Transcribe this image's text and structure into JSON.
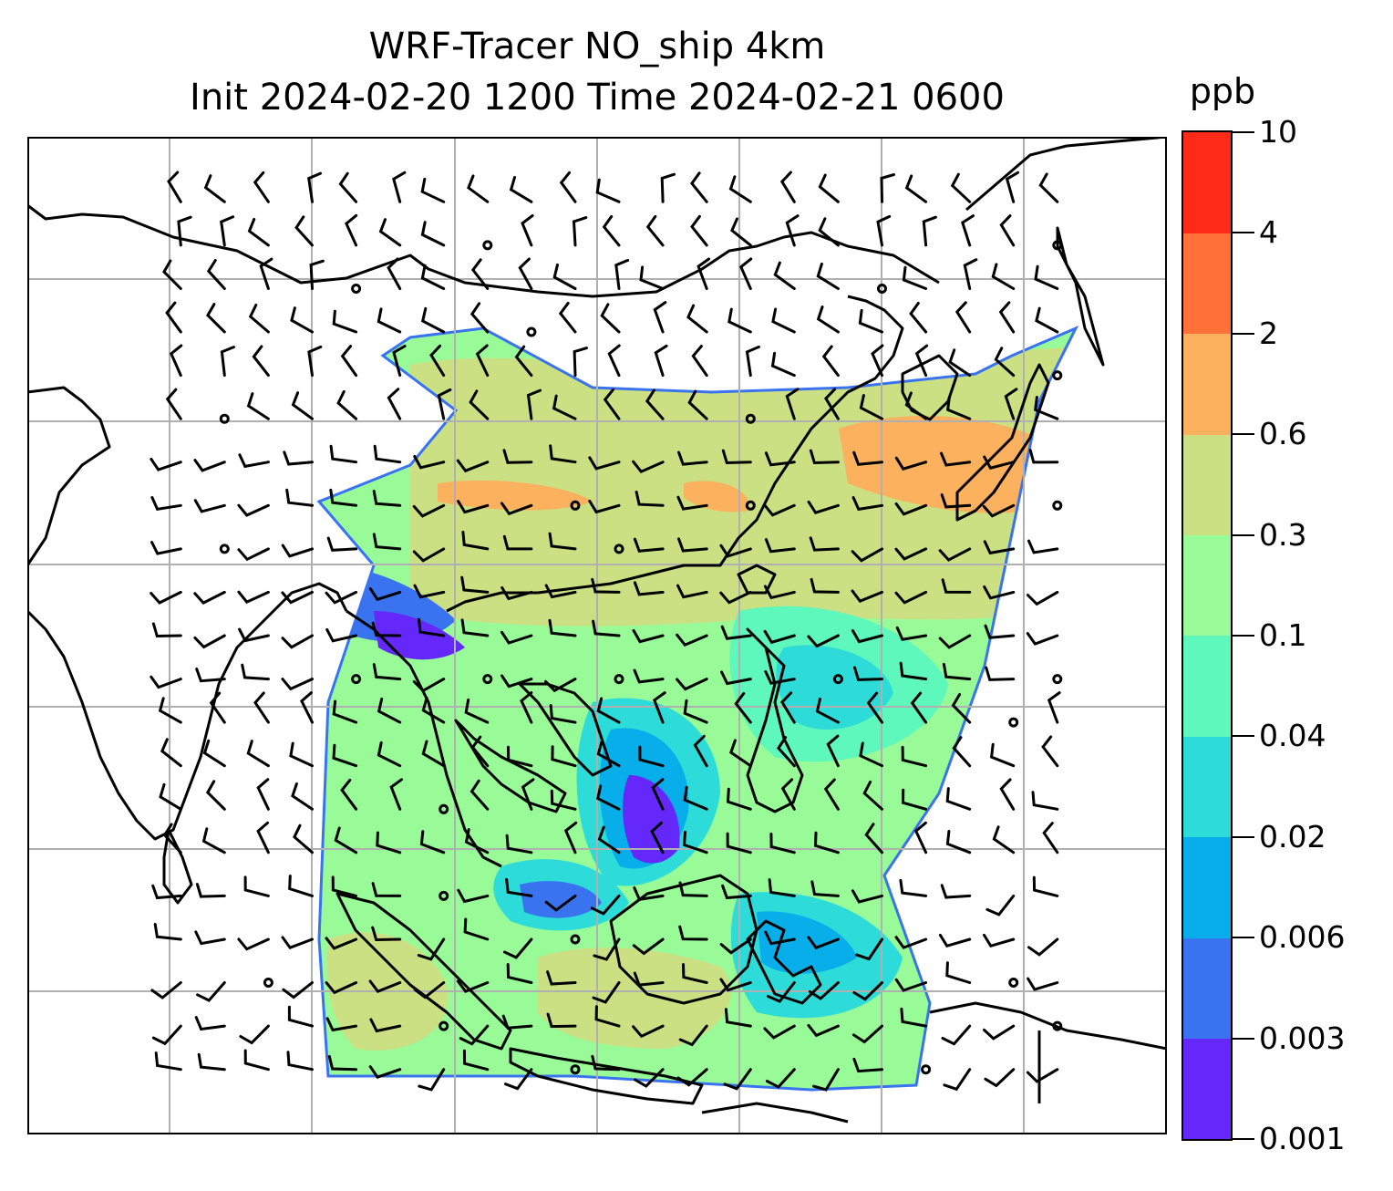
{
  "title": {
    "line1": "WRF-Tracer NO_ship 4km",
    "line2": "Init 2024-02-20 1200 Time 2024-02-21 0600"
  },
  "colorbar": {
    "unit": "ppb",
    "levels": [
      "0.001",
      "0.003",
      "0.006",
      "0.02",
      "0.04",
      "0.1",
      "0.3",
      "0.6",
      "2",
      "4",
      "10"
    ],
    "colors": [
      "#6428fa",
      "#3a73f0",
      "#07aeea",
      "#2ddcd8",
      "#5ef7bc",
      "#98fb98",
      "#cbe083",
      "#fcb15e",
      "#ff7139",
      "#ff2a18"
    ]
  },
  "map": {
    "gridlines": true,
    "coastlines": true,
    "wind_barbs": true,
    "calm_markers": true
  }
}
